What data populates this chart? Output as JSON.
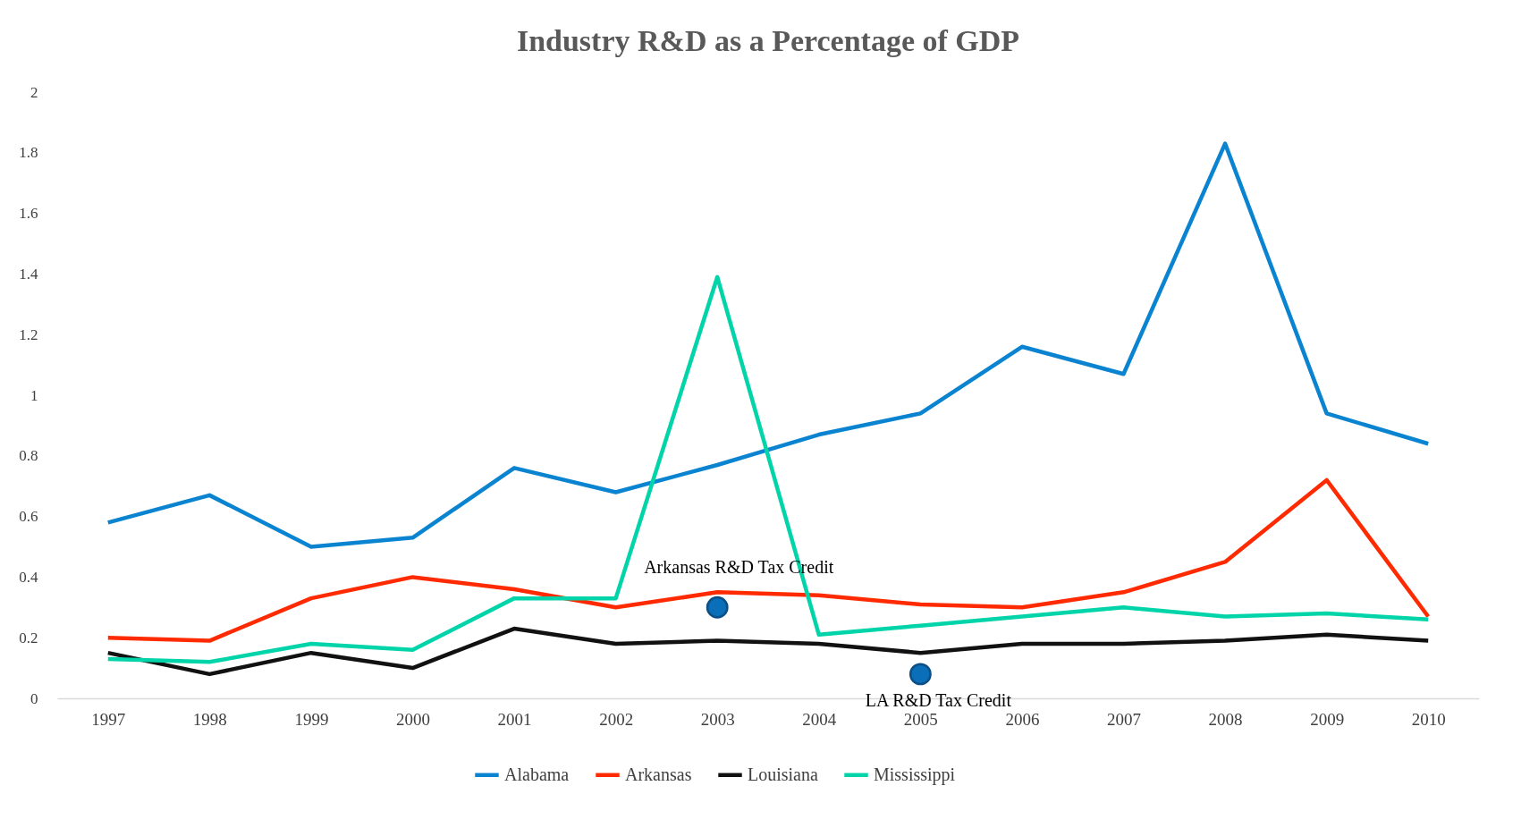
{
  "chart_data": {
    "type": "line",
    "title": "Industry R&D as a Percentage of GDP",
    "categories": [
      "1997",
      "1998",
      "1999",
      "2000",
      "2001",
      "2002",
      "2003",
      "2004",
      "2005",
      "2006",
      "2007",
      "2008",
      "2009",
      "2010"
    ],
    "series": [
      {
        "name": "Alabama",
        "color": "#0a84d0",
        "values": [
          0.58,
          0.67,
          0.5,
          0.53,
          0.76,
          0.68,
          0.77,
          0.87,
          0.94,
          1.16,
          1.07,
          1.83,
          0.94,
          0.84
        ]
      },
      {
        "name": "Arkansas",
        "color": "#ff2a00",
        "values": [
          0.2,
          0.19,
          0.33,
          0.4,
          0.36,
          0.3,
          0.35,
          0.34,
          0.31,
          0.3,
          0.35,
          0.45,
          0.72,
          0.27
        ]
      },
      {
        "name": "Louisiana",
        "color": "#111111",
        "values": [
          0.15,
          0.08,
          0.15,
          0.1,
          0.23,
          0.18,
          0.19,
          0.18,
          0.15,
          0.18,
          0.18,
          0.19,
          0.21,
          0.19
        ]
      },
      {
        "name": "Mississippi",
        "color": "#00d4a8",
        "values": [
          0.13,
          0.12,
          0.18,
          0.16,
          0.33,
          0.33,
          1.39,
          0.21,
          0.24,
          0.27,
          0.3,
          0.27,
          0.28,
          0.26
        ]
      }
    ],
    "ylim": [
      0,
      2
    ],
    "yticks": [
      0,
      0.2,
      0.4,
      0.6,
      0.8,
      1,
      1.2,
      1.4,
      1.6,
      1.8,
      2
    ],
    "grid": false,
    "legend": "bottom",
    "marker": "none",
    "line_style": "solid",
    "annotations": [
      {
        "text": "Arkansas R&D Tax Credit",
        "x": "2003",
        "y": 0.3
      },
      {
        "text": "LA  R&D Tax Credit",
        "x": "2005",
        "y": 0.08
      }
    ]
  }
}
